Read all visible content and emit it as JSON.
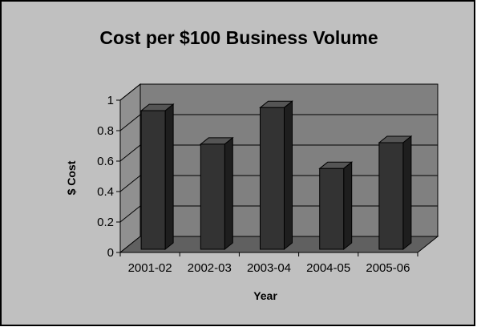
{
  "chart_data": {
    "type": "bar",
    "title": "Cost per $100 Business Volume",
    "xlabel": "Year",
    "ylabel": "$ Cost",
    "categories": [
      "2001-02",
      "2002-03",
      "2003-04",
      "2004-05",
      "2005-06"
    ],
    "values": [
      0.91,
      0.69,
      0.93,
      0.53,
      0.7
    ],
    "ylim": [
      0,
      1
    ],
    "yticks": [
      "0",
      "0.2",
      "0.4",
      "0.6",
      "0.8",
      "1"
    ],
    "yticks_values": [
      0,
      0.2,
      0.4,
      0.6,
      0.8,
      1
    ],
    "grid": true,
    "legend": "none",
    "colors": {
      "background": "#c0c0c0",
      "wall": "#808080",
      "floor": "#606060",
      "bar_front": "#333333",
      "bar_side": "#1e1e1e",
      "bar_top": "#555555",
      "frame": "#000000"
    }
  }
}
